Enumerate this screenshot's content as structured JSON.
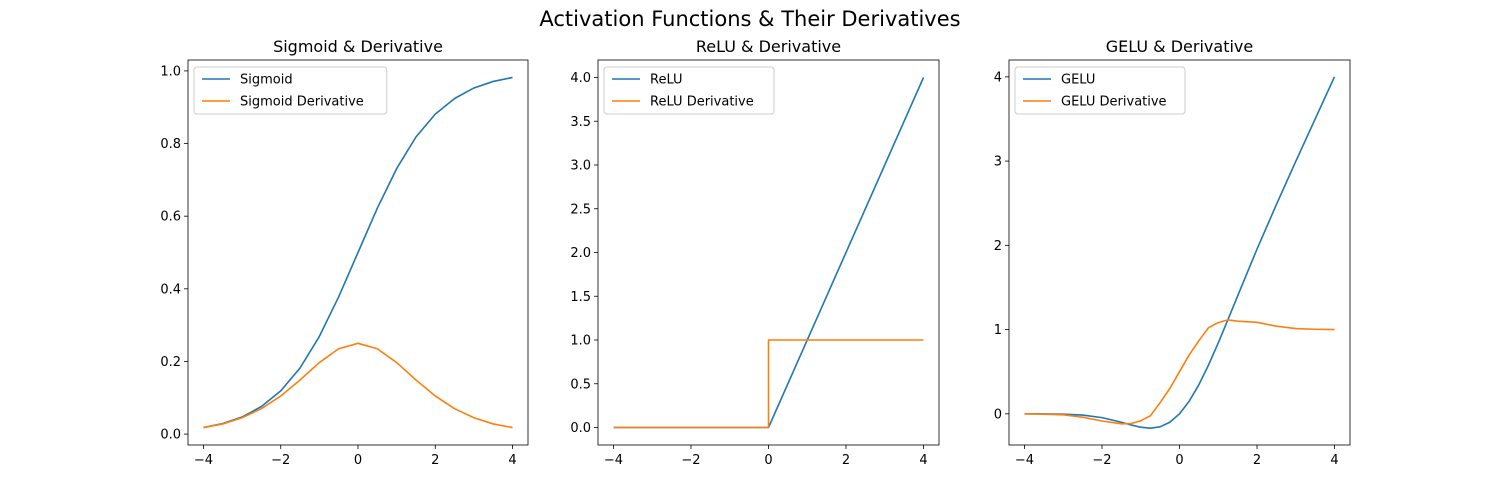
{
  "suptitle": "Activation Functions & Their Derivatives",
  "chart_data": [
    {
      "type": "line",
      "title": "Sigmoid & Derivative",
      "xlabel": "",
      "ylabel": "",
      "xlim": [
        -4.4,
        4.4
      ],
      "ylim": [
        -0.03,
        1.03
      ],
      "xticks": [
        -4,
        -2,
        0,
        2,
        4
      ],
      "xtick_labels": [
        "−4",
        "−2",
        "0",
        "2",
        "4"
      ],
      "yticks": [
        0.0,
        0.2,
        0.4,
        0.6,
        0.8,
        1.0
      ],
      "ytick_labels": [
        "0.0",
        "0.2",
        "0.4",
        "0.6",
        "0.8",
        "1.0"
      ],
      "legend": "top-left",
      "grid": false,
      "x": [
        -4,
        -3.5,
        -3,
        -2.5,
        -2,
        -1.5,
        -1,
        -0.5,
        0,
        0.5,
        1,
        1.5,
        2,
        2.5,
        3,
        3.5,
        4
      ],
      "series": [
        {
          "name": "Sigmoid",
          "color": "#1f77b4",
          "values": [
            0.018,
            0.029,
            0.047,
            0.076,
            0.119,
            0.182,
            0.269,
            0.378,
            0.5,
            0.622,
            0.731,
            0.818,
            0.881,
            0.924,
            0.953,
            0.971,
            0.982
          ]
        },
        {
          "name": "Sigmoid Derivative",
          "color": "#ff7f0e",
          "values": [
            0.018,
            0.028,
            0.045,
            0.07,
            0.105,
            0.149,
            0.197,
            0.235,
            0.25,
            0.235,
            0.197,
            0.149,
            0.105,
            0.07,
            0.045,
            0.028,
            0.018
          ]
        }
      ]
    },
    {
      "type": "line",
      "title": "ReLU & Derivative",
      "xlabel": "",
      "ylabel": "",
      "xlim": [
        -4.4,
        4.4
      ],
      "ylim": [
        -0.2,
        4.2
      ],
      "xticks": [
        -4,
        -2,
        0,
        2,
        4
      ],
      "xtick_labels": [
        "−4",
        "−2",
        "0",
        "2",
        "4"
      ],
      "yticks": [
        0.0,
        0.5,
        1.0,
        1.5,
        2.0,
        2.5,
        3.0,
        3.5,
        4.0
      ],
      "ytick_labels": [
        "0.0",
        "0.5",
        "1.0",
        "1.5",
        "2.0",
        "2.5",
        "3.0",
        "3.5",
        "4.0"
      ],
      "legend": "top-left",
      "grid": false,
      "series": [
        {
          "name": "ReLU",
          "color": "#1f77b4",
          "x": [
            -4,
            0,
            4
          ],
          "values": [
            0,
            0,
            4
          ]
        },
        {
          "name": "ReLU Derivative",
          "color": "#ff7f0e",
          "x": [
            -4,
            0,
            0,
            4
          ],
          "values": [
            0,
            0,
            1,
            1
          ]
        }
      ]
    },
    {
      "type": "line",
      "title": "GELU & Derivative",
      "xlabel": "",
      "ylabel": "",
      "xlim": [
        -4.4,
        4.4
      ],
      "ylim": [
        -0.37,
        4.2
      ],
      "xticks": [
        -4,
        -2,
        0,
        2,
        4
      ],
      "xtick_labels": [
        "−4",
        "−2",
        "0",
        "2",
        "4"
      ],
      "yticks": [
        0,
        1,
        2,
        3,
        4
      ],
      "ytick_labels": [
        "0",
        "1",
        "2",
        "3",
        "4"
      ],
      "legend": "top-left",
      "grid": false,
      "x": [
        -4,
        -3.5,
        -3,
        -2.5,
        -2,
        -1.5,
        -1.25,
        -1,
        -0.75,
        -0.5,
        -0.25,
        0,
        0.25,
        0.5,
        0.75,
        1,
        1.25,
        1.5,
        2,
        2.5,
        3,
        3.5,
        4
      ],
      "series": [
        {
          "name": "GELU",
          "color": "#1f77b4",
          "values": [
            0.0,
            -0.001,
            -0.004,
            -0.015,
            -0.045,
            -0.1,
            -0.132,
            -0.159,
            -0.17,
            -0.154,
            -0.1,
            0,
            0.15,
            0.346,
            0.58,
            0.841,
            1.118,
            1.4,
            1.955,
            2.484,
            2.996,
            3.499,
            4.0
          ]
        },
        {
          "name": "GELU Derivative",
          "color": "#ff7f0e",
          "values": [
            0.0,
            -0.004,
            -0.012,
            -0.04,
            -0.085,
            -0.119,
            -0.115,
            -0.083,
            -0.023,
            0.132,
            0.301,
            0.5,
            0.699,
            0.868,
            1.023,
            1.083,
            1.115,
            1.1,
            1.086,
            1.04,
            1.012,
            1.004,
            1.0
          ]
        }
      ]
    }
  ]
}
